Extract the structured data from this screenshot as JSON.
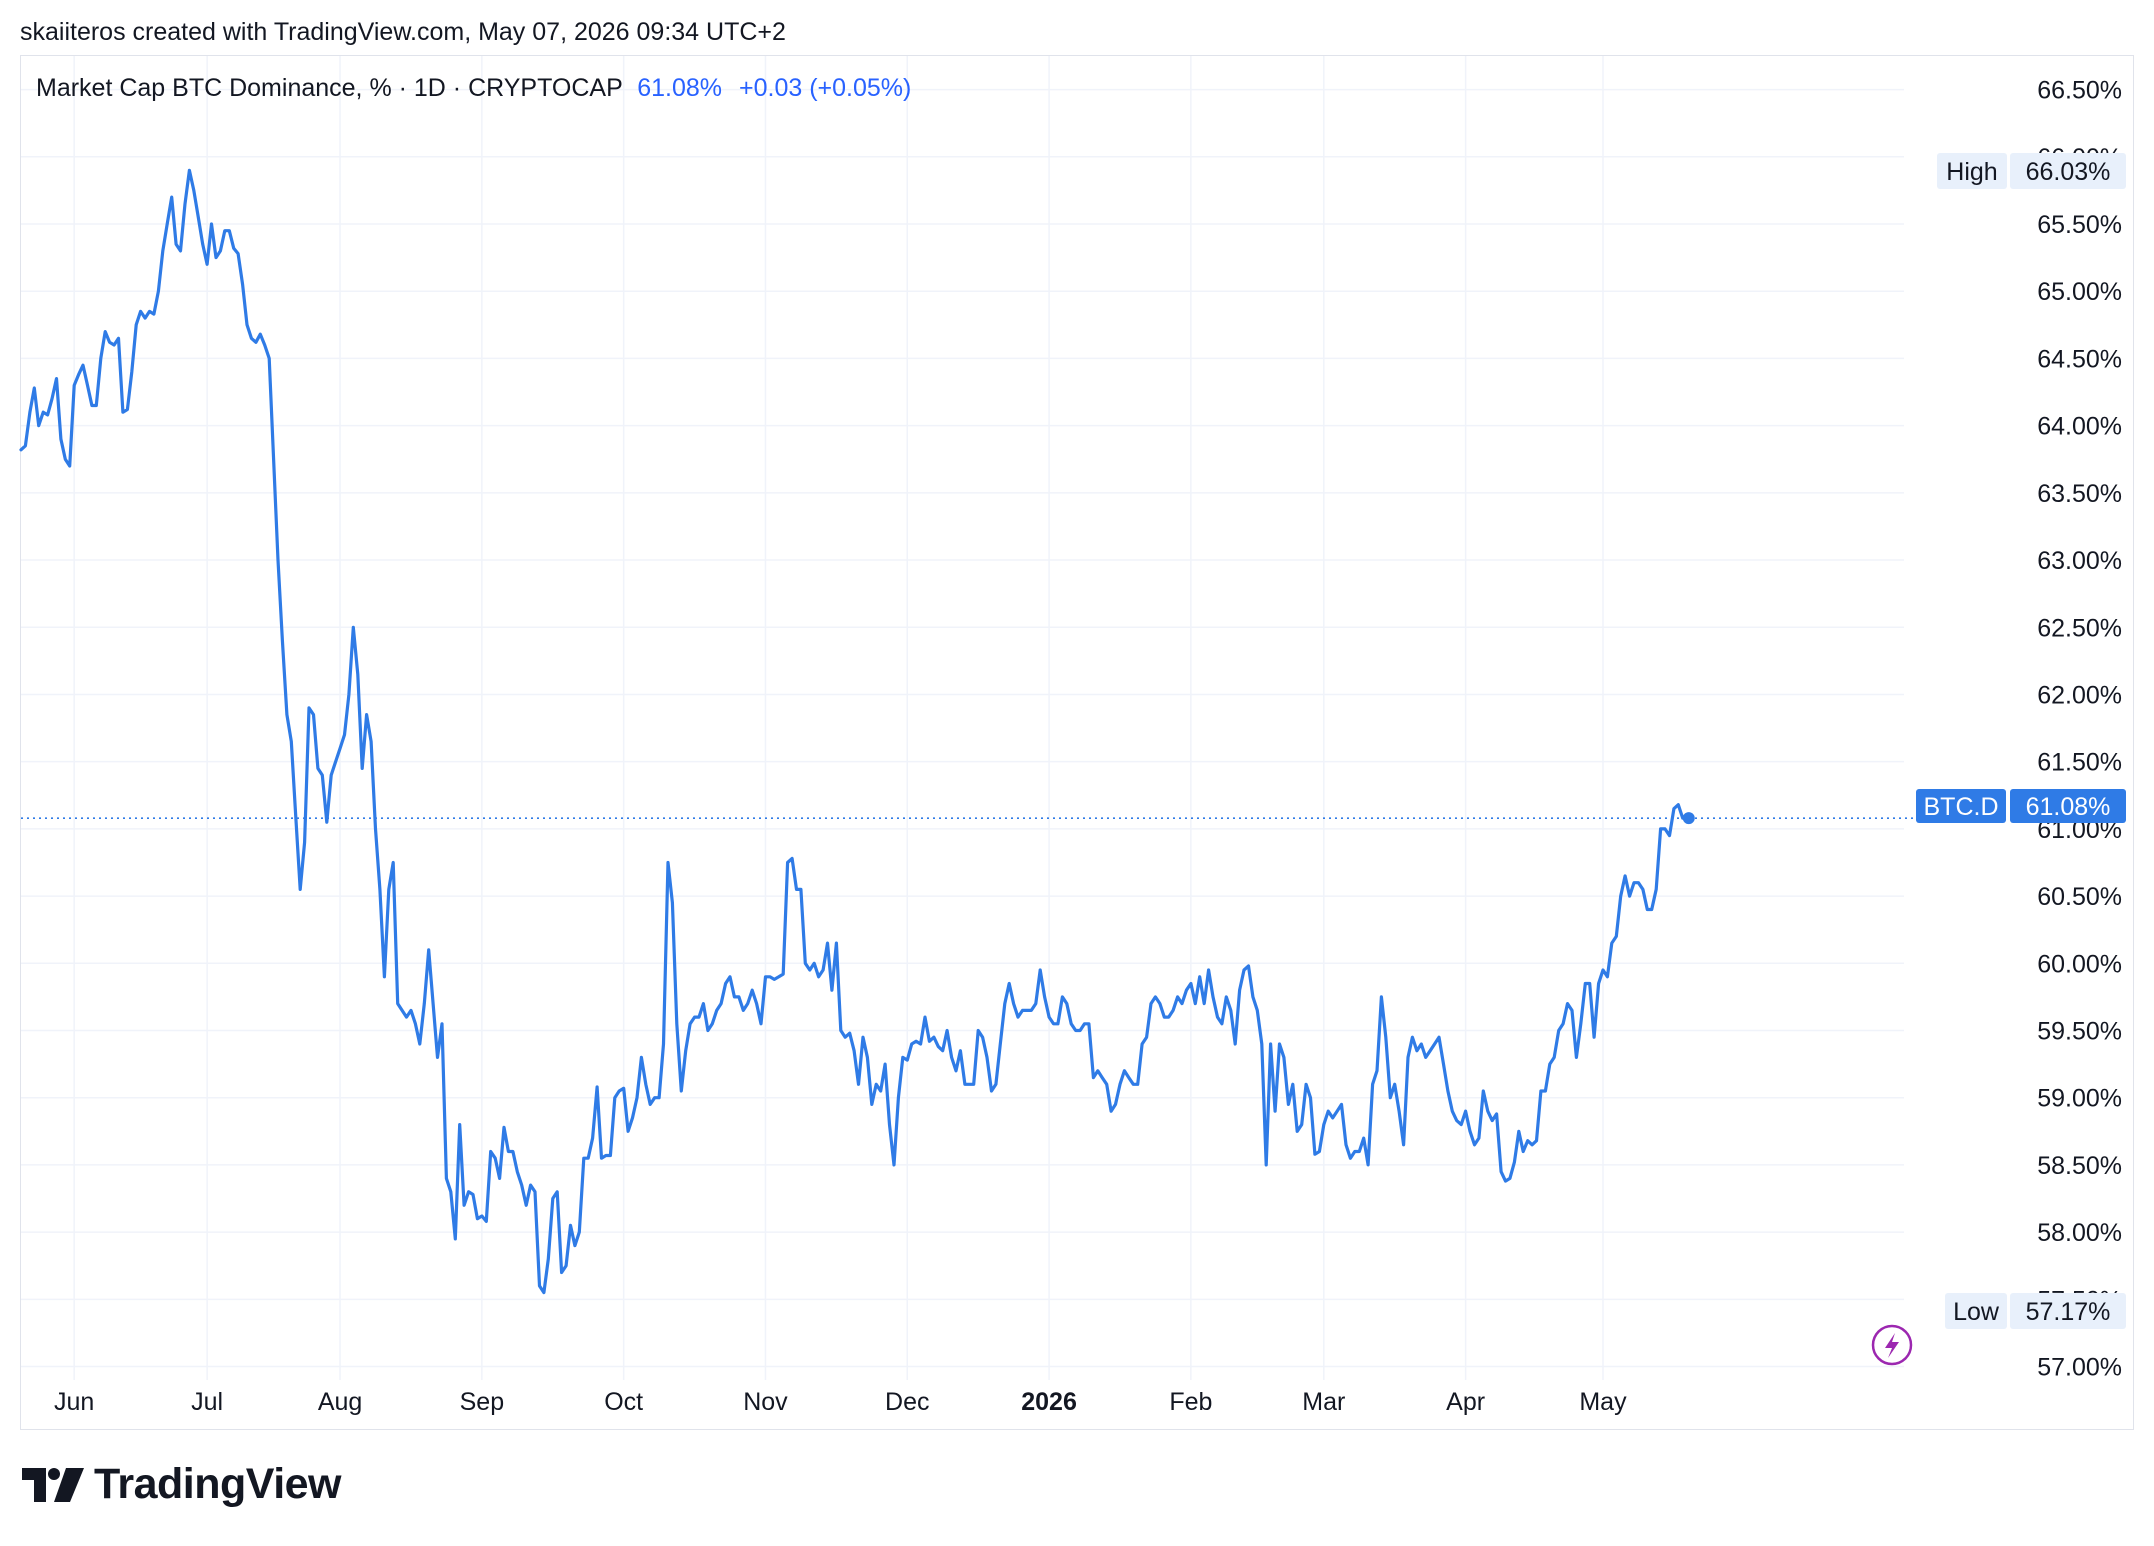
{
  "header": {
    "attribution": "skaiiteros created with TradingView.com, May 07, 2026 09:34 UTC+2"
  },
  "legend": {
    "title": "Market Cap BTC Dominance, % · 1D · CRYPTOCAP",
    "value": "61.08%",
    "change": "+0.03 (+0.05%)"
  },
  "markers": {
    "high_label": "High",
    "high_value": "66.03%",
    "low_label": "Low",
    "low_value": "57.17%",
    "symbol_label": "BTC.D",
    "last_value": "61.08%"
  },
  "brand": {
    "name": "TradingView"
  },
  "colors": {
    "line": "#2f7be6",
    "label_bg": "#2f7be6",
    "tag_bg": "#e8f0fb",
    "grid": "#f0f3fa"
  },
  "chart_data": {
    "type": "line",
    "series": [
      {
        "values": [
          63.82,
          63.85,
          64.1,
          64.28,
          64.0,
          64.1,
          64.08,
          64.2,
          64.35,
          63.9,
          63.75,
          63.7,
          64.3,
          64.38,
          64.45,
          64.3,
          64.15,
          64.15,
          64.5,
          64.7,
          64.62,
          64.6,
          64.65,
          64.1,
          64.12,
          64.4,
          64.75,
          64.85,
          64.8,
          64.85,
          64.83,
          65.0,
          65.3,
          65.5,
          65.7,
          65.35,
          65.3,
          65.65,
          65.9,
          65.75,
          65.55,
          65.35,
          65.2,
          65.5,
          65.25,
          65.3,
          65.45,
          65.45,
          65.32,
          65.28,
          65.05,
          64.75,
          64.65,
          64.62,
          64.68,
          64.6,
          64.5,
          63.75,
          63.0,
          62.4,
          61.85,
          61.65,
          61.1,
          60.55,
          60.9,
          61.9,
          61.85,
          61.45,
          61.4,
          61.05,
          61.4,
          61.5,
          61.6,
          61.7,
          62.0,
          62.5,
          62.15,
          61.45,
          61.85,
          61.65,
          61.0,
          60.55,
          59.9,
          60.55,
          60.75,
          59.7,
          59.65,
          59.6,
          59.65,
          59.55,
          59.4,
          59.7,
          60.1,
          59.7,
          59.3,
          59.55,
          58.4,
          58.3,
          57.95,
          58.8,
          58.2,
          58.3,
          58.28,
          58.1,
          58.12,
          58.08,
          58.6,
          58.55,
          58.4,
          58.78,
          58.6,
          58.6,
          58.45,
          58.35,
          58.2,
          58.35,
          58.3,
          57.6,
          57.55,
          57.8,
          58.25,
          58.3,
          57.7,
          57.75,
          58.05,
          57.9,
          58.0,
          58.55,
          58.55,
          58.7,
          59.08,
          58.55,
          58.57,
          58.57,
          59.0,
          59.05,
          59.07,
          58.75,
          58.85,
          59.0,
          59.3,
          59.1,
          58.95,
          59.0,
          59.0,
          59.4,
          60.75,
          60.45,
          59.55,
          59.05,
          59.35,
          59.55,
          59.6,
          59.6,
          59.7,
          59.5,
          59.55,
          59.65,
          59.7,
          59.85,
          59.9,
          59.75,
          59.75,
          59.65,
          59.7,
          59.8,
          59.7,
          59.55,
          59.9,
          59.9,
          59.88,
          59.9,
          59.92,
          60.75,
          60.78,
          60.55,
          60.55,
          60.0,
          59.95,
          60.0,
          59.9,
          59.95,
          60.15,
          59.8,
          60.15,
          59.5,
          59.45,
          59.48,
          59.35,
          59.1,
          59.45,
          59.3,
          58.95,
          59.1,
          59.05,
          59.25,
          58.8,
          58.5,
          59.0,
          59.3,
          59.28,
          59.4,
          59.42,
          59.4,
          59.6,
          59.42,
          59.45,
          59.38,
          59.35,
          59.5,
          59.3,
          59.2,
          59.35,
          59.1,
          59.1,
          59.1,
          59.5,
          59.45,
          59.3,
          59.05,
          59.1,
          59.4,
          59.7,
          59.85,
          59.7,
          59.6,
          59.65,
          59.65,
          59.65,
          59.7,
          59.95,
          59.75,
          59.6,
          59.55,
          59.55,
          59.75,
          59.7,
          59.55,
          59.5,
          59.5,
          59.55,
          59.55,
          59.15,
          59.2,
          59.15,
          59.1,
          58.9,
          58.95,
          59.1,
          59.2,
          59.15,
          59.1,
          59.1,
          59.4,
          59.45,
          59.7,
          59.75,
          59.7,
          59.6,
          59.6,
          59.65,
          59.75,
          59.7,
          59.8,
          59.85,
          59.7,
          59.9,
          59.7,
          59.95,
          59.75,
          59.6,
          59.55,
          59.75,
          59.65,
          59.4,
          59.8,
          59.95,
          59.98,
          59.75,
          59.65,
          59.4,
          58.5,
          59.4,
          58.9,
          59.4,
          59.3,
          58.95,
          59.1,
          58.75,
          58.8,
          59.1,
          59.0,
          58.58,
          58.6,
          58.8,
          58.9,
          58.85,
          58.9,
          58.95,
          58.65,
          58.55,
          58.6,
          58.6,
          58.7,
          58.5,
          59.1,
          59.2,
          59.75,
          59.45,
          59.0,
          59.1,
          58.9,
          58.65,
          59.3,
          59.45,
          59.35,
          59.4,
          59.3,
          59.35,
          59.4,
          59.45,
          59.25,
          59.05,
          58.9,
          58.83,
          58.8,
          58.9,
          58.75,
          58.65,
          58.7,
          59.05,
          58.9,
          58.83,
          58.88,
          58.45,
          58.38,
          58.4,
          58.52,
          58.75,
          58.6,
          58.68,
          58.65,
          58.68,
          59.05,
          59.05,
          59.25,
          59.3,
          59.5,
          59.55,
          59.7,
          59.65,
          59.3,
          59.55,
          59.85,
          59.85,
          59.45,
          59.85,
          59.95,
          59.9,
          60.15,
          60.2,
          60.5,
          60.65,
          60.5,
          60.6,
          60.6,
          60.55,
          60.4,
          60.4,
          60.55,
          61.0,
          61.0,
          60.95,
          61.15,
          61.18,
          61.08
        ]
      }
    ],
    "x_ticks": [
      "Jun",
      "Jul",
      "Aug",
      "Sep",
      "Oct",
      "Nov",
      "Dec",
      "2026",
      "Feb",
      "Mar",
      "Apr",
      "May"
    ],
    "y_ticks": [
      "66.50%",
      "66.00%",
      "65.50%",
      "65.00%",
      "64.50%",
      "64.00%",
      "63.50%",
      "63.00%",
      "62.50%",
      "62.00%",
      "61.50%",
      "61.00%",
      "60.50%",
      "60.00%",
      "59.50%",
      "59.00%",
      "58.50%",
      "58.00%",
      "57.50%",
      "57.00%"
    ],
    "y_tick_values": [
      66.5,
      66.0,
      65.5,
      65.0,
      64.5,
      64.0,
      63.5,
      63.0,
      62.5,
      62.0,
      61.5,
      61.0,
      60.5,
      60.0,
      59.5,
      59.0,
      58.5,
      58.0,
      57.5,
      57.0
    ],
    "ylim": [
      56.9,
      66.75
    ],
    "high": 66.03,
    "low": 57.17,
    "last": 61.08,
    "grid": true
  }
}
